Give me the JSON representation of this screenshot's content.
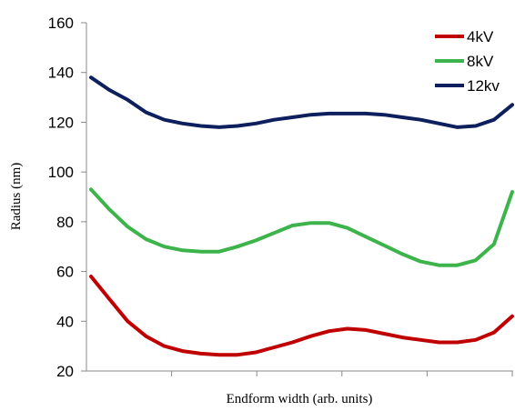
{
  "chart_data": {
    "type": "line",
    "x_label": "Endform width (arb. units)",
    "y_label": "Radius (nm)",
    "categories": [
      null,
      null,
      null,
      null,
      null,
      null,
      null,
      null,
      null,
      null,
      null,
      null,
      null,
      null,
      null,
      null,
      null,
      null,
      null,
      null,
      null,
      null,
      null,
      null
    ],
    "series": [
      {
        "name": "4kV",
        "color": "#c00000",
        "values": [
          58,
          49,
          40,
          34,
          30,
          28,
          27,
          26.5,
          26.5,
          27.5,
          29.5,
          31.5,
          34,
          36,
          37,
          36.5,
          35,
          33.5,
          32.5,
          31.5,
          31.5,
          32.5,
          35.5,
          42
        ]
      },
      {
        "name": "8kV",
        "color": "#3cb44b",
        "values": [
          93,
          85,
          78,
          73,
          70,
          68.5,
          68,
          68,
          70,
          72.5,
          75.5,
          78.5,
          79.5,
          79.5,
          77.5,
          74,
          70.5,
          67,
          64,
          62.5,
          62.5,
          64.5,
          71,
          92
        ]
      },
      {
        "name": "12kv",
        "color": "#0d1f5c",
        "values": [
          138,
          133,
          129,
          124,
          121,
          119.5,
          118.5,
          118,
          118.5,
          119.5,
          121,
          122,
          123,
          123.5,
          123.5,
          123.5,
          123,
          122,
          121,
          119.5,
          118,
          118.5,
          121,
          127
        ]
      }
    ],
    "ylim": [
      20,
      160
    ],
    "yticks": [
      20,
      40,
      60,
      80,
      100,
      120,
      140,
      160
    ],
    "grid": false,
    "legend": "top-right"
  }
}
